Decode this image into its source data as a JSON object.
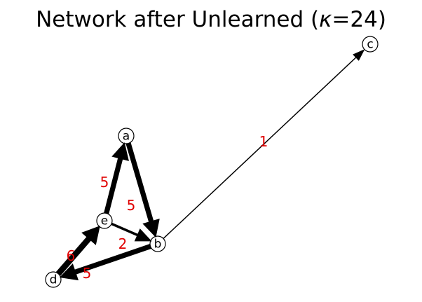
{
  "title_prefix": "Network after Unlearned (",
  "title_symbol": "κ",
  "title_suffix": "=24)",
  "nodes": [
    {
      "id": "a",
      "label": "a"
    },
    {
      "id": "b",
      "label": "b"
    },
    {
      "id": "c",
      "label": "c"
    },
    {
      "id": "d",
      "label": "d"
    },
    {
      "id": "e",
      "label": "e"
    }
  ],
  "edges": [
    {
      "from": "e",
      "to": "a",
      "weight": 5,
      "label": "5"
    },
    {
      "from": "a",
      "to": "b",
      "weight": 5,
      "label": "5"
    },
    {
      "from": "e",
      "to": "b",
      "weight": 2,
      "label": "2"
    },
    {
      "from": "d",
      "to": "e",
      "weight": 6,
      "label": "6"
    },
    {
      "from": "b",
      "to": "d",
      "weight": 5,
      "label": "5"
    },
    {
      "from": "b",
      "to": "c",
      "weight": 1,
      "label": "1"
    }
  ],
  "colors": {
    "edge": "#000000",
    "edge_label": "#e00000",
    "node_stroke": "#000000",
    "node_fill": "#ffffff"
  }
}
